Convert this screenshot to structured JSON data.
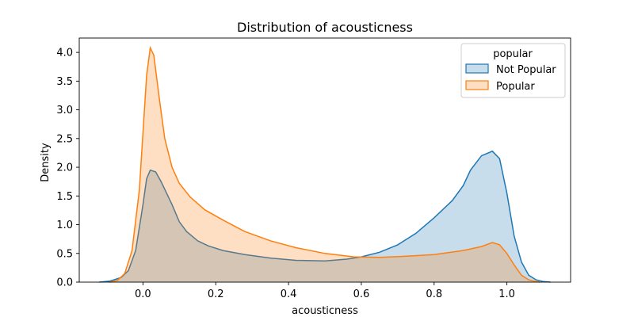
{
  "chart_data": {
    "type": "area",
    "title": "Distribution of acousticness",
    "xlabel": "acousticness",
    "ylabel": "Density",
    "xlim": [
      -0.175,
      1.175
    ],
    "ylim": [
      0,
      4.25
    ],
    "xticks": [
      0.0,
      0.2,
      0.4,
      0.6,
      0.8,
      1.0
    ],
    "xtick_labels": [
      "0.0",
      "0.2",
      "0.4",
      "0.6",
      "0.8",
      "1.0"
    ],
    "yticks": [
      0.0,
      0.5,
      1.0,
      1.5,
      2.0,
      2.5,
      3.0,
      3.5,
      4.0
    ],
    "ytick_labels": [
      "0.0",
      "0.5",
      "1.0",
      "1.5",
      "2.0",
      "2.5",
      "3.0",
      "3.5",
      "4.0"
    ],
    "grid": false,
    "legend": {
      "title": "popular",
      "placement": "top-right"
    },
    "series": [
      {
        "name": "Not Popular",
        "color": "#1f77b4",
        "points": [
          [
            -0.12,
            0.0
          ],
          [
            -0.09,
            0.02
          ],
          [
            -0.06,
            0.08
          ],
          [
            -0.04,
            0.2
          ],
          [
            -0.02,
            0.55
          ],
          [
            0.0,
            1.35
          ],
          [
            0.01,
            1.8
          ],
          [
            0.02,
            1.95
          ],
          [
            0.035,
            1.92
          ],
          [
            0.05,
            1.75
          ],
          [
            0.08,
            1.35
          ],
          [
            0.1,
            1.05
          ],
          [
            0.12,
            0.88
          ],
          [
            0.15,
            0.72
          ],
          [
            0.18,
            0.63
          ],
          [
            0.22,
            0.55
          ],
          [
            0.28,
            0.48
          ],
          [
            0.35,
            0.42
          ],
          [
            0.42,
            0.38
          ],
          [
            0.5,
            0.37
          ],
          [
            0.56,
            0.4
          ],
          [
            0.6,
            0.44
          ],
          [
            0.65,
            0.52
          ],
          [
            0.7,
            0.65
          ],
          [
            0.75,
            0.85
          ],
          [
            0.8,
            1.12
          ],
          [
            0.85,
            1.42
          ],
          [
            0.88,
            1.68
          ],
          [
            0.9,
            1.95
          ],
          [
            0.93,
            2.2
          ],
          [
            0.96,
            2.28
          ],
          [
            0.98,
            2.15
          ],
          [
            1.0,
            1.55
          ],
          [
            1.02,
            0.8
          ],
          [
            1.04,
            0.35
          ],
          [
            1.06,
            0.12
          ],
          [
            1.08,
            0.04
          ],
          [
            1.1,
            0.01
          ],
          [
            1.12,
            0.0
          ]
        ]
      },
      {
        "name": "Popular",
        "color": "#ff7f0e",
        "points": [
          [
            -0.09,
            0.0
          ],
          [
            -0.07,
            0.03
          ],
          [
            -0.05,
            0.15
          ],
          [
            -0.03,
            0.55
          ],
          [
            -0.01,
            1.6
          ],
          [
            0.0,
            2.6
          ],
          [
            0.01,
            3.6
          ],
          [
            0.02,
            4.08
          ],
          [
            0.03,
            3.95
          ],
          [
            0.045,
            3.2
          ],
          [
            0.06,
            2.5
          ],
          [
            0.08,
            2.0
          ],
          [
            0.1,
            1.72
          ],
          [
            0.13,
            1.48
          ],
          [
            0.17,
            1.26
          ],
          [
            0.22,
            1.08
          ],
          [
            0.28,
            0.88
          ],
          [
            0.35,
            0.72
          ],
          [
            0.42,
            0.6
          ],
          [
            0.5,
            0.5
          ],
          [
            0.58,
            0.44
          ],
          [
            0.65,
            0.43
          ],
          [
            0.72,
            0.45
          ],
          [
            0.8,
            0.48
          ],
          [
            0.88,
            0.55
          ],
          [
            0.93,
            0.62
          ],
          [
            0.96,
            0.69
          ],
          [
            0.98,
            0.65
          ],
          [
            1.0,
            0.5
          ],
          [
            1.02,
            0.3
          ],
          [
            1.04,
            0.12
          ],
          [
            1.06,
            0.04
          ],
          [
            1.08,
            0.01
          ],
          [
            1.09,
            0.0
          ]
        ]
      }
    ]
  }
}
